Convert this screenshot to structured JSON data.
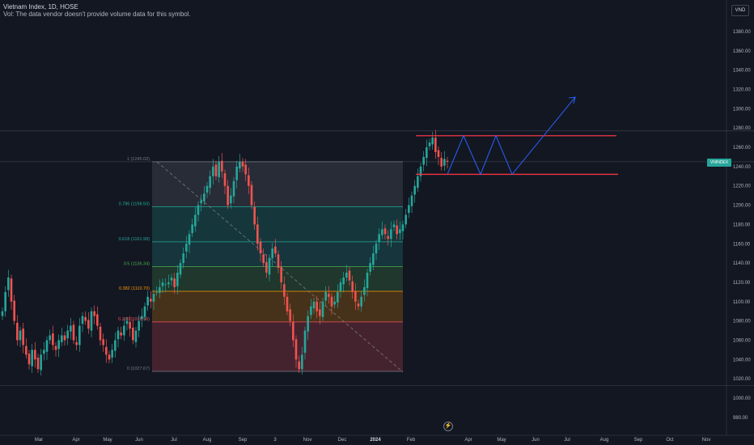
{
  "header": {
    "title": "Vietnam Index, 1D, HOSE",
    "volume_note": "Vol: The data vendor doesn't provide volume data for this symbol."
  },
  "currency": "VND",
  "last_price_tag": "VNINDEX",
  "settings_icon": "lightning-icon",
  "colors": {
    "background": "#131722",
    "up": "#26a69a",
    "down": "#ef5350",
    "projection": "#2962ff",
    "range_lines": "#f23645"
  },
  "chart_data": {
    "type": "candlestick",
    "title": "Vietnam Index",
    "ylim": [
      970,
      1400
    ],
    "y_ticks": [
      980,
      1000,
      1020,
      1040,
      1060,
      1080,
      1100,
      1120,
      1140,
      1160,
      1180,
      1200,
      1220,
      1240,
      1260,
      1280,
      1300,
      1320,
      1340,
      1360,
      1380
    ],
    "x_ticks": [
      "Mar",
      "Apr",
      "May",
      "Jun",
      "Jul",
      "Aug",
      "Sep",
      "3",
      "Nov",
      "Dec",
      "2024",
      "Feb",
      "Mar",
      "Apr",
      "May",
      "Jun",
      "Jul",
      "Aug",
      "Sep",
      "Oct",
      "Nov"
    ],
    "close_series": [
      1090,
      1110,
      1125,
      1100,
      1080,
      1060,
      1070,
      1055,
      1045,
      1035,
      1050,
      1040,
      1030,
      1045,
      1050,
      1060,
      1065,
      1055,
      1050,
      1060,
      1065,
      1060,
      1070,
      1075,
      1060,
      1055,
      1075,
      1085,
      1080,
      1072,
      1090,
      1085,
      1075,
      1060,
      1055,
      1045,
      1040,
      1050,
      1060,
      1070,
      1065,
      1075,
      1080,
      1072,
      1060,
      1070,
      1080,
      1085,
      1095,
      1105,
      1100,
      1108,
      1110,
      1115,
      1120,
      1118,
      1120,
      1125,
      1115,
      1130,
      1140,
      1150,
      1160,
      1170,
      1180,
      1190,
      1200,
      1205,
      1212,
      1220,
      1230,
      1240,
      1230,
      1245,
      1235,
      1220,
      1200,
      1210,
      1225,
      1240,
      1245,
      1240,
      1232,
      1220,
      1200,
      1180,
      1160,
      1150,
      1140,
      1130,
      1145,
      1155,
      1150,
      1135,
      1120,
      1105,
      1090,
      1080,
      1060,
      1040,
      1030,
      1045,
      1070,
      1085,
      1095,
      1100,
      1090,
      1085,
      1100,
      1110,
      1105,
      1095,
      1100,
      1110,
      1120,
      1125,
      1130,
      1122,
      1110,
      1100,
      1095,
      1105,
      1115,
      1130,
      1140,
      1150,
      1160,
      1170,
      1175,
      1170,
      1165,
      1175,
      1180,
      1170,
      1175,
      1180,
      1190,
      1200,
      1210,
      1220,
      1230,
      1240,
      1250,
      1260,
      1265,
      1270,
      1255,
      1250,
      1240,
      1248,
      1245
    ],
    "high": 1275,
    "low": 1020,
    "fibonacci": {
      "levels": [
        {
          "label": "1 (1245.02)",
          "value": 1245.02
        },
        {
          "label": "0.786 (1198.50)",
          "value": 1198.5
        },
        {
          "label": "0.618 (1161.99)",
          "value": 1161.99
        },
        {
          "label": "0.5 (1136.34)",
          "value": 1136.34
        },
        {
          "label": "0.382 (1110.70)",
          "value": 1110.7
        },
        {
          "label": "0.236 (1078.96)",
          "value": 1078.96
        },
        {
          "label": "0 (1027.67)",
          "value": 1027.67
        }
      ],
      "band_colors": [
        "#787b86",
        "#22ab94",
        "#26a69a",
        "#4caf50",
        "#ff9800",
        "#f7525f"
      ],
      "line_colors": [
        "#787b86",
        "#22ab94",
        "#26a69a",
        "#4caf50",
        "#ff9800",
        "#f7525f",
        "#787b86"
      ],
      "label_colors": [
        "#787b86",
        "#22ab94",
        "#26a69a",
        "#4caf50",
        "#ff9800",
        "#f7525f",
        "#787b86"
      ]
    },
    "range": {
      "upper": 1272,
      "lower": 1232
    },
    "projection_path": [
      {
        "t": 0,
        "v": 1232
      },
      {
        "t": 1,
        "v": 1272
      },
      {
        "t": 2,
        "v": 1232
      },
      {
        "t": 3,
        "v": 1272
      },
      {
        "t": 4,
        "v": 1232
      },
      {
        "t": 5,
        "v": 1312
      }
    ],
    "horizontal_refs": [
      1277,
      1245,
      1013
    ]
  }
}
